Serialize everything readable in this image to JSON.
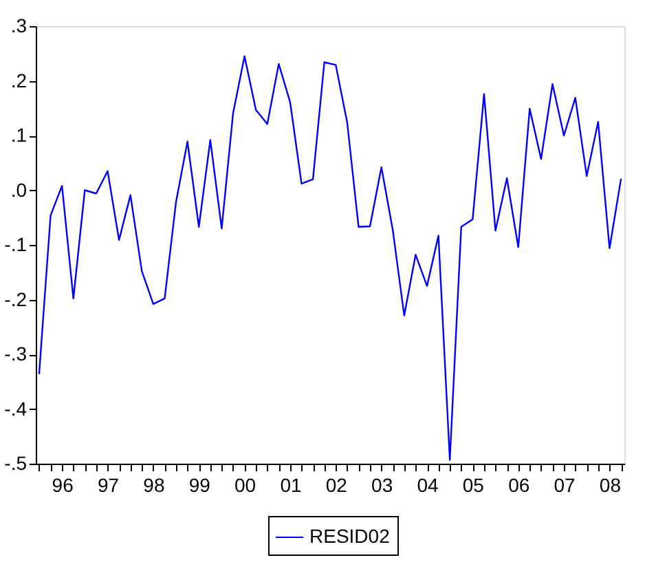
{
  "chart_data": {
    "type": "line",
    "categories": [
      null,
      null,
      "96",
      null,
      null,
      null,
      "97",
      null,
      null,
      null,
      "98",
      null,
      null,
      null,
      "99",
      null,
      null,
      null,
      "00",
      null,
      null,
      null,
      "01",
      null,
      null,
      null,
      "02",
      null,
      null,
      null,
      "03",
      null,
      null,
      null,
      "04",
      null,
      null,
      null,
      "05",
      null,
      null,
      null,
      "06",
      null,
      null,
      null,
      "07",
      null,
      null,
      null,
      "08",
      null
    ],
    "series": [
      {
        "name": "RESID02",
        "color": "#0000ff",
        "values": [
          -0.335,
          -0.046,
          0.008,
          -0.198,
          0.0,
          -0.006,
          0.035,
          -0.091,
          -0.009,
          -0.148,
          -0.208,
          -0.198,
          -0.021,
          0.089,
          -0.067,
          0.092,
          -0.07,
          0.141,
          0.245,
          0.147,
          0.121,
          0.231,
          0.161,
          0.012,
          0.02,
          0.234,
          0.229,
          0.124,
          -0.067,
          -0.066,
          0.042,
          -0.073,
          -0.229,
          -0.118,
          -0.175,
          -0.083,
          -0.493,
          -0.067,
          -0.053,
          0.176,
          -0.074,
          0.022,
          -0.104,
          0.149,
          0.057,
          0.194,
          0.1,
          0.169,
          0.026,
          0.125,
          -0.106,
          0.02
        ]
      }
    ],
    "ylim": [
      -0.5,
      0.3
    ],
    "yticks": [
      {
        "value": 0.3,
        "label": ".3"
      },
      {
        "value": 0.2,
        "label": ".2"
      },
      {
        "value": 0.1,
        "label": ".1"
      },
      {
        "value": 0.0,
        "label": ".0"
      },
      {
        "value": -0.1,
        "label": "-.1"
      },
      {
        "value": -0.2,
        "label": "-.2"
      },
      {
        "value": -0.3,
        "label": "-.3"
      },
      {
        "value": -0.4,
        "label": "-.4"
      },
      {
        "value": -0.5,
        "label": "-.5"
      }
    ],
    "grid": false,
    "legend": "bottom",
    "marker": "none",
    "line_style": "solid"
  }
}
